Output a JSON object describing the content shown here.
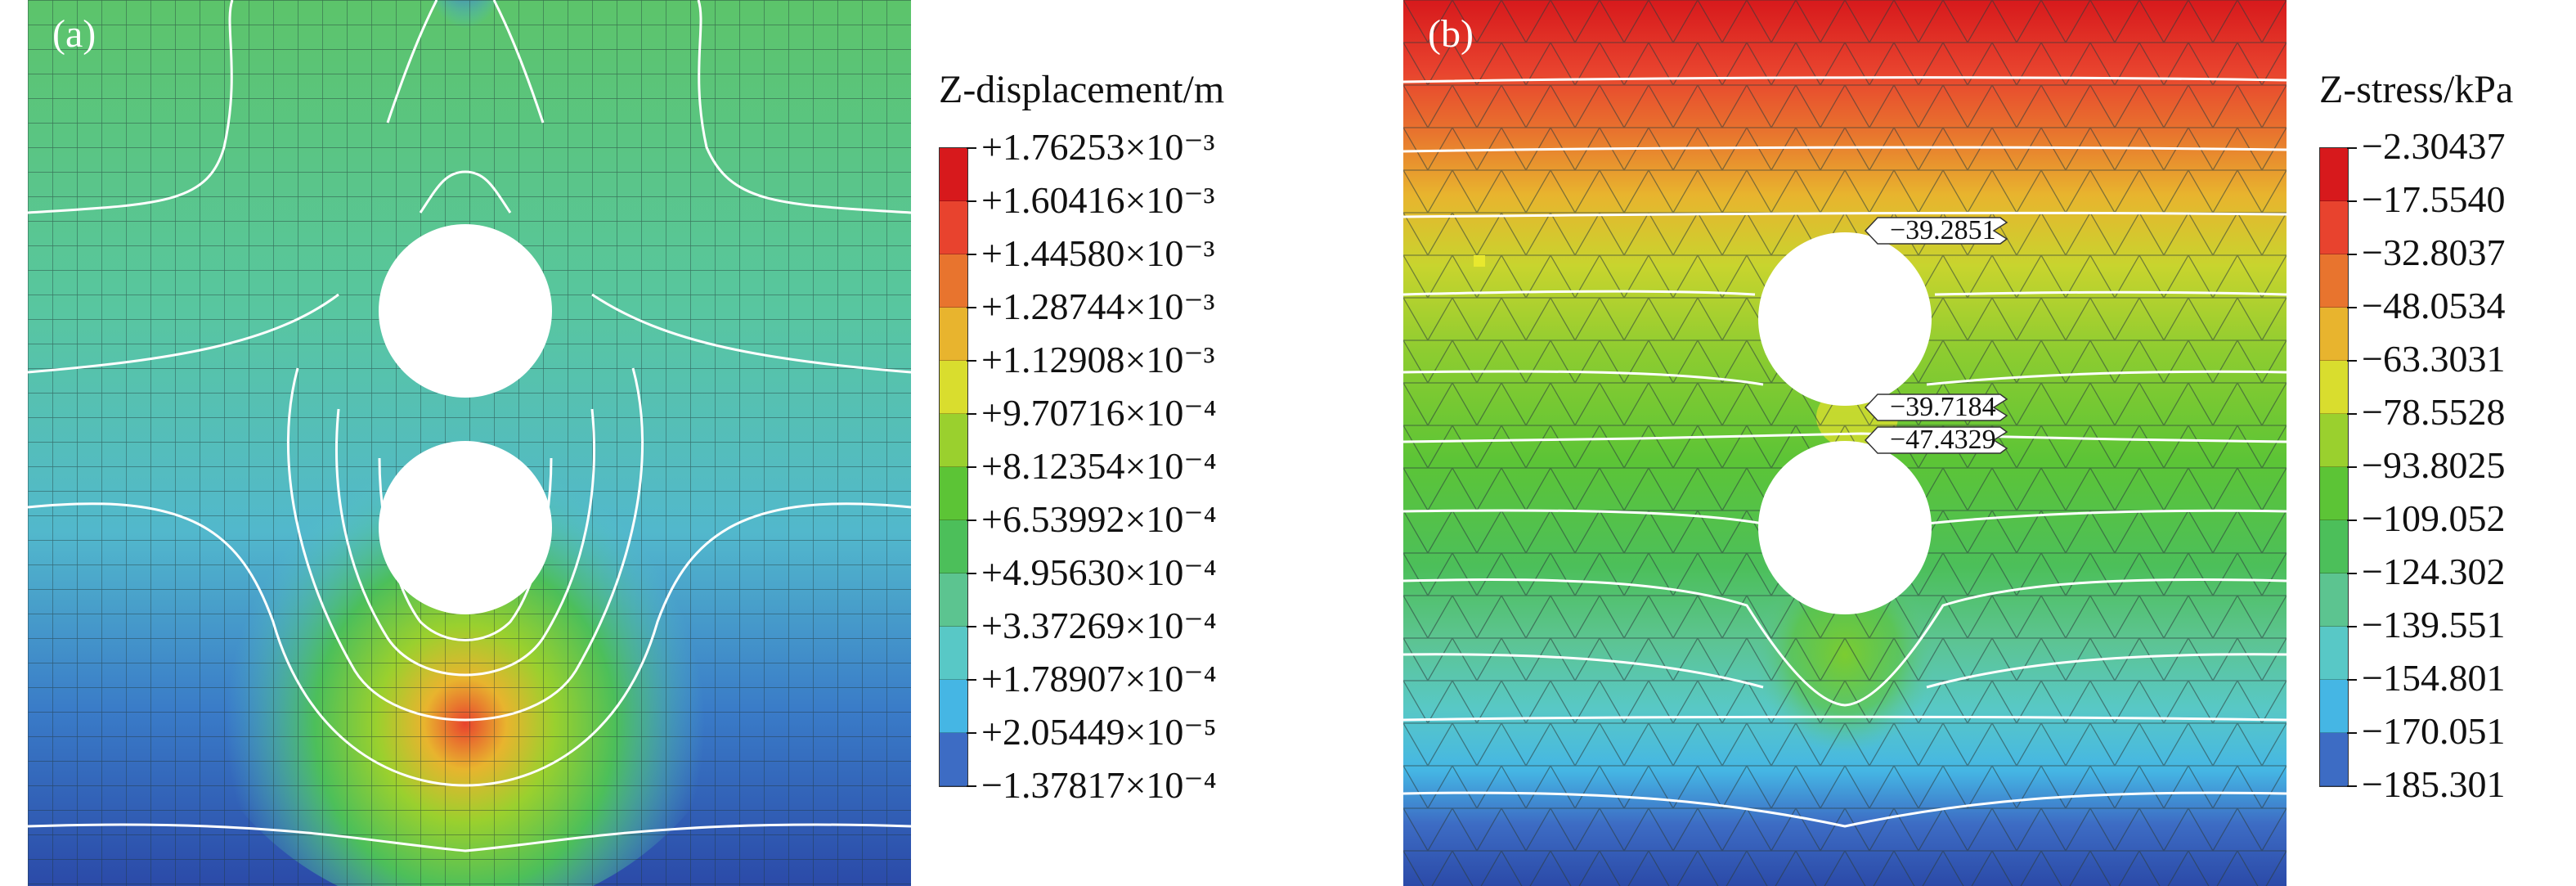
{
  "panels": [
    {
      "label": "(a)",
      "legend_title": "Z-displacement/m",
      "legend_values": [
        "+1.76253×10⁻³",
        "+1.60416×10⁻³",
        "+1.44580×10⁻³",
        "+1.28744×10⁻³",
        "+1.12908×10⁻³",
        "+9.70716×10⁻⁴",
        "+8.12354×10⁻⁴",
        "+6.53992×10⁻⁴",
        "+4.95630×10⁻⁴",
        "+3.37269×10⁻⁴",
        "+1.78907×10⁻⁴",
        "+2.05449×10⁻⁵",
        "−1.37817×10⁻⁴"
      ]
    },
    {
      "label": "(b)",
      "legend_title": "Z-stress/kPa",
      "legend_values": [
        "−2.30437",
        "−17.5540",
        "−32.8037",
        "−48.0534",
        "−63.3031",
        "−78.5528",
        "−93.8025",
        "−109.052",
        "−124.302",
        "−139.551",
        "−154.801",
        "−170.051",
        "−185.301"
      ],
      "callouts": [
        "−39.2851",
        "−39.7184",
        "−47.4329"
      ]
    }
  ],
  "colors": {
    "scale": [
      "#d7191c",
      "#e8432e",
      "#e8742e",
      "#e8b42e",
      "#d9dd2e",
      "#9ad02e",
      "#5cc436",
      "#4cbf5a",
      "#5cc490",
      "#58c8c6",
      "#45b6e4",
      "#3d6cc4",
      "#2b4aa8"
    ],
    "contour_line": "#ffffff",
    "mesh_line": "#2a3a3a"
  }
}
